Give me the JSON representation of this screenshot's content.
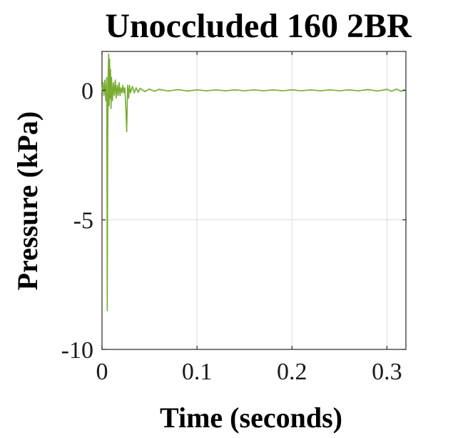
{
  "chart_data": {
    "type": "line",
    "title": "Unoccluded 160 2BR",
    "xlabel": "Time (seconds)",
    "ylabel": "Pressure (kPa)",
    "xlim": [
      0,
      0.32
    ],
    "ylim": [
      -10,
      1.5
    ],
    "x_ticks": [
      0,
      0.1,
      0.2,
      0.3
    ],
    "x_tick_labels": [
      "0",
      "0.1",
      "0.2",
      "0.3"
    ],
    "y_ticks": [
      -10,
      -5,
      0
    ],
    "y_tick_labels": [
      "-10",
      "-5",
      "0"
    ],
    "grid": true,
    "colors": {
      "series": "#77ac30"
    },
    "series": [
      {
        "x": [
          0,
          0.001,
          0.002,
          0.003,
          0.004,
          0.005,
          0.0055,
          0.006,
          0.0065,
          0.007,
          0.0075,
          0.008,
          0.0085,
          0.009,
          0.0095,
          0.01,
          0.011,
          0.012,
          0.013,
          0.014,
          0.015,
          0.016,
          0.017,
          0.018,
          0.019,
          0.02,
          0.021,
          0.022,
          0.023,
          0.024,
          0.025,
          0.026,
          0.027,
          0.028,
          0.029,
          0.03,
          0.032,
          0.034,
          0.036,
          0.038,
          0.04,
          0.045,
          0.05,
          0.055,
          0.06,
          0.07,
          0.08,
          0.09,
          0.1,
          0.11,
          0.12,
          0.13,
          0.14,
          0.15,
          0.16,
          0.17,
          0.18,
          0.19,
          0.2,
          0.21,
          0.22,
          0.23,
          0.24,
          0.25,
          0.26,
          0.27,
          0.28,
          0.29,
          0.3,
          0.305,
          0.31,
          0.315,
          0.32
        ],
        "y": [
          0.0,
          0.3,
          -0.2,
          0.4,
          -0.4,
          0.5,
          -8.5,
          -2.0,
          0.6,
          1.4,
          -0.6,
          1.2,
          -0.3,
          0.8,
          -0.7,
          0.5,
          -0.4,
          0.3,
          -0.2,
          0.4,
          -0.3,
          0.2,
          -0.2,
          0.3,
          -0.2,
          0.1,
          -0.1,
          0.2,
          -0.1,
          0.1,
          -0.6,
          -1.6,
          0.2,
          -0.3,
          0.2,
          -0.1,
          0.15,
          -0.1,
          0.1,
          -0.08,
          0.08,
          -0.05,
          0.05,
          -0.04,
          0.04,
          -0.03,
          0.03,
          -0.03,
          0.02,
          -0.02,
          0.02,
          -0.02,
          0.02,
          -0.02,
          0.02,
          -0.02,
          0.02,
          -0.02,
          0.02,
          -0.02,
          0.02,
          -0.02,
          0.02,
          -0.02,
          0.02,
          -0.02,
          0.03,
          -0.03,
          0.04,
          -0.04,
          0.05,
          -0.04,
          0.03
        ]
      }
    ]
  }
}
